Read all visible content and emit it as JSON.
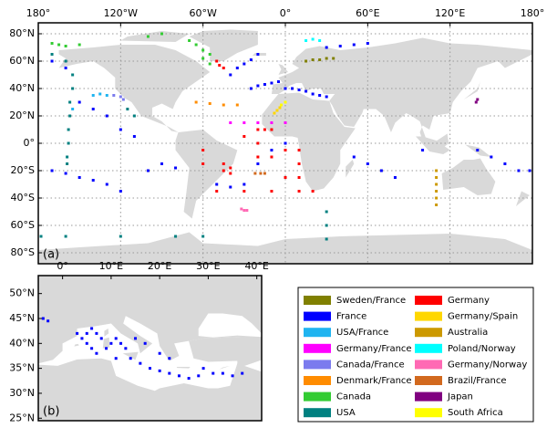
{
  "chart_data": [
    {
      "type": "scatter",
      "label": "(a)",
      "xlim": [
        -180,
        180
      ],
      "ylim": [
        -88,
        88
      ],
      "grid": true,
      "xticks": [
        {
          "value": -180,
          "label": "180°"
        },
        {
          "value": -120,
          "label": "120°W"
        },
        {
          "value": -60,
          "label": "60°W"
        },
        {
          "value": 0,
          "label": "0°"
        },
        {
          "value": 60,
          "label": "60°E"
        },
        {
          "value": 120,
          "label": "120°E"
        },
        {
          "value": 180,
          "label": "180°"
        }
      ],
      "yticks": [
        {
          "value": 80,
          "label": "80°N"
        },
        {
          "value": 60,
          "label": "60°N"
        },
        {
          "value": 40,
          "label": "40°N"
        },
        {
          "value": 20,
          "label": "20°N"
        },
        {
          "value": 0,
          "label": "0°"
        },
        {
          "value": -20,
          "label": "20°S"
        },
        {
          "value": -40,
          "label": "40°S"
        },
        {
          "value": -60,
          "label": "60°S"
        },
        {
          "value": -80,
          "label": "80°S"
        }
      ],
      "series": [
        {
          "name": "Sweden/France",
          "color": "#808000",
          "x": [
            15,
            20,
            25,
            30,
            35
          ],
          "values": [
            60,
            61,
            61,
            62,
            62
          ]
        },
        {
          "name": "France",
          "color": "#0000ff",
          "x": [
            -25,
            -20,
            -15,
            -10,
            -5,
            0,
            5,
            10,
            15,
            20,
            25,
            30,
            -40,
            -35,
            -30,
            -25,
            -20,
            30,
            40,
            50,
            60,
            -170,
            -160,
            -150,
            -140,
            -130,
            -120,
            -100,
            -90,
            -80,
            -50,
            -40,
            -30,
            -20,
            -10,
            0,
            50,
            60,
            70,
            80,
            100,
            140,
            150,
            160,
            170,
            178,
            -150,
            -140,
            -130,
            -120,
            -110,
            -170,
            -160
          ],
          "values": [
            40,
            42,
            43,
            44,
            45,
            40,
            40,
            39,
            38,
            36,
            35,
            34,
            50,
            55,
            58,
            61,
            65,
            70,
            71,
            72,
            73,
            -20,
            -22,
            -25,
            -27,
            -30,
            -35,
            -20,
            -15,
            -18,
            -30,
            -32,
            -30,
            -15,
            -5,
            0,
            -10,
            -15,
            -20,
            -25,
            -5,
            -5,
            -10,
            -15,
            -20,
            -20,
            30,
            25,
            20,
            10,
            5,
            60,
            55
          ]
        },
        {
          "name": "USA/France",
          "color": "#1fb4f0",
          "x": [
            -140,
            -135,
            -130,
            -155
          ],
          "values": [
            35,
            36,
            35,
            25
          ]
        },
        {
          "name": "Germany/France",
          "color": "#ff00ff",
          "x": [
            -40,
            -30,
            -20,
            -10,
            0
          ],
          "values": [
            15,
            15,
            15,
            15,
            15
          ]
        },
        {
          "name": "Canada/France",
          "color": "#7b7bee",
          "x": [
            -125,
            -120,
            -118
          ],
          "values": [
            35,
            34,
            32
          ]
        },
        {
          "name": "Denmark/France",
          "color": "#ff8c00",
          "x": [
            -65,
            -55,
            -45,
            -35
          ],
          "values": [
            30,
            29,
            28,
            28
          ]
        },
        {
          "name": "Canada",
          "color": "#33cc33",
          "x": [
            -170,
            -165,
            -160,
            -150,
            -70,
            -65,
            -60,
            -55,
            -60,
            -55,
            -100,
            -90
          ],
          "values": [
            73,
            72,
            71,
            72,
            75,
            72,
            68,
            65,
            62,
            58,
            78,
            80
          ]
        },
        {
          "name": "USA",
          "color": "#008080",
          "x": [
            -170,
            -160,
            -155,
            -155,
            -157,
            -157,
            -158,
            -158,
            -159,
            -159,
            30,
            30,
            30,
            -178,
            -160,
            -120,
            -80,
            -60,
            -115,
            -110
          ],
          "values": [
            65,
            60,
            50,
            40,
            30,
            20,
            10,
            0,
            -10,
            -15,
            -50,
            -60,
            -70,
            -68,
            -68,
            -68,
            -68,
            -68,
            25,
            20
          ]
        },
        {
          "name": "Germany",
          "color": "#ff0000",
          "x": [
            -50,
            -48,
            -45,
            -20,
            -20,
            -20,
            -15,
            -10,
            -10,
            -30,
            -45,
            -40,
            -45,
            -40,
            -50,
            -30,
            -10,
            10,
            20,
            0,
            10,
            10,
            10,
            0,
            -60,
            -60
          ],
          "values": [
            60,
            57,
            55,
            10,
            0,
            -10,
            10,
            -10,
            10,
            5,
            -15,
            -18,
            -20,
            -22,
            -35,
            -35,
            -35,
            -35,
            -35,
            -5,
            -5,
            -15,
            -25,
            -25,
            -5,
            -15
          ]
        },
        {
          "name": "Germany/Spain",
          "color": "#ffd700",
          "x": [
            -8,
            -6,
            -4
          ],
          "values": [
            22,
            24,
            26
          ]
        },
        {
          "name": "Australia",
          "color": "#cc9900",
          "x": [
            110,
            110,
            110,
            110,
            110,
            110
          ],
          "values": [
            -20,
            -25,
            -30,
            -35,
            -40,
            -45
          ]
        },
        {
          "name": "Poland/Norway",
          "color": "#00ffff",
          "x": [
            15,
            20,
            25
          ],
          "values": [
            75,
            76,
            75
          ]
        },
        {
          "name": "Germany/Norway",
          "color": "#ff69b4",
          "x": [
            -32,
            -30,
            -28
          ],
          "values": [
            -48,
            -49,
            -49
          ]
        },
        {
          "name": "Brazil/France",
          "color": "#d2691e",
          "x": [
            -22,
            -18,
            -15
          ],
          "values": [
            -22,
            -22,
            -22
          ]
        },
        {
          "name": "Japan",
          "color": "#800080",
          "x": [
            139,
            140
          ],
          "values": [
            30,
            32
          ]
        },
        {
          "name": "South Africa",
          "color": "#ffff00",
          "x": [
            -3,
            0
          ],
          "values": [
            28,
            30
          ]
        }
      ]
    },
    {
      "type": "scatter",
      "label": "(b)",
      "xlim": [
        -5,
        41
      ],
      "ylim": [
        24.5,
        53.6
      ],
      "grid": false,
      "xticks": [
        {
          "value": 0,
          "label": "0°"
        },
        {
          "value": 10,
          "label": "10°E"
        },
        {
          "value": 20,
          "label": "20°E"
        },
        {
          "value": 30,
          "label": "30°E"
        },
        {
          "value": 40,
          "label": "40°E"
        }
      ],
      "yticks": [
        {
          "value": 50,
          "label": "50°N"
        },
        {
          "value": 45,
          "label": "45°N"
        },
        {
          "value": 40,
          "label": "40°N"
        },
        {
          "value": 35,
          "label": "35°N"
        },
        {
          "value": 30,
          "label": "30°N"
        },
        {
          "value": 25,
          "label": "25°N"
        }
      ],
      "series": [
        {
          "name": "France",
          "color": "#0000ff",
          "x": [
            -4,
            -3,
            3,
            4,
            5,
            6,
            7,
            8,
            5,
            6,
            7,
            9,
            10,
            11,
            12,
            13,
            11,
            14,
            16,
            18,
            20,
            22,
            24,
            26,
            28,
            29,
            31,
            33,
            35,
            37,
            20,
            22,
            17,
            15
          ],
          "values": [
            45,
            44.5,
            42,
            41,
            42,
            43,
            42,
            41,
            40,
            39,
            38,
            39,
            40,
            41,
            40,
            39,
            37,
            37,
            36,
            35,
            34.5,
            34,
            33.5,
            33,
            33.5,
            35,
            34,
            34,
            33.5,
            34,
            38,
            37,
            40,
            41
          ]
        }
      ]
    }
  ]
}
